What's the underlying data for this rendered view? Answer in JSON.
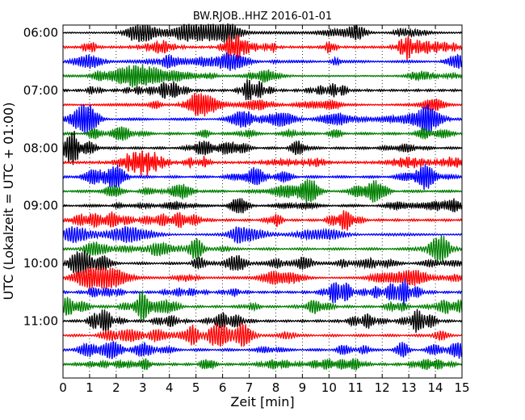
{
  "chart_data": {
    "type": "line",
    "title": "BW.RJOB..HHZ 2016-01-01",
    "xlabel": "Zeit  [min]",
    "ylabel": "UTC (Lokalzeit = UTC + 01:00)",
    "xlim": [
      0,
      15
    ],
    "xticks": [
      0,
      1,
      2,
      3,
      4,
      5,
      6,
      7,
      8,
      9,
      10,
      11,
      12,
      13,
      14,
      15
    ],
    "yticks": [
      "06:00",
      "07:00",
      "08:00",
      "09:00",
      "10:00",
      "11:00"
    ],
    "trace_count": 24,
    "trace_interval_min": 15,
    "first_trace": "06:00",
    "color_cycle": [
      "#000000",
      "#ff0000",
      "#0000ff",
      "#008000"
    ],
    "grid": true
  }
}
